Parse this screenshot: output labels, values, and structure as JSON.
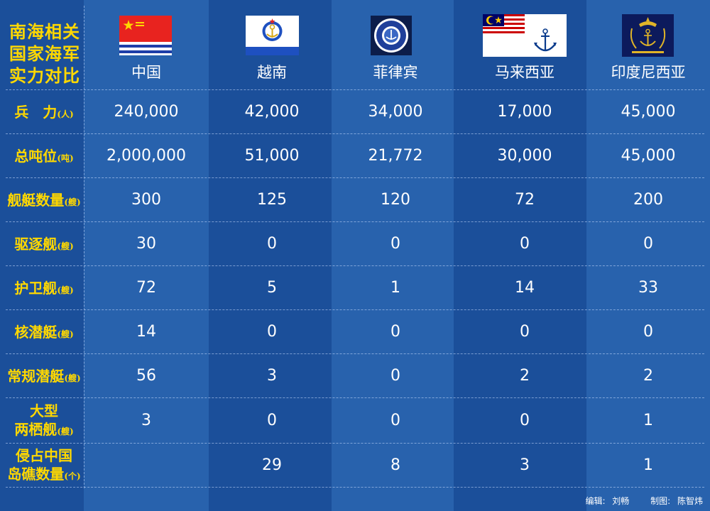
{
  "title_lines": [
    "南海相关",
    "国家海军",
    "实力对比"
  ],
  "countries": [
    {
      "name": "中国",
      "flag": "china-navy-flag-icon"
    },
    {
      "name": "越南",
      "flag": "vietnam-navy-flag-icon"
    },
    {
      "name": "菲律宾",
      "flag": "philippine-navy-seal-icon"
    },
    {
      "name": "马来西亚",
      "flag": "malaysia-navy-flag-icon"
    },
    {
      "name": "印度尼西亚",
      "flag": "indonesia-navy-flag-icon"
    }
  ],
  "chart_data": {
    "type": "table",
    "columns": [
      "中国",
      "越南",
      "菲律宾",
      "马来西亚",
      "印度尼西亚"
    ],
    "rows": [
      {
        "label": "兵　力",
        "unit": "(人)",
        "values": [
          "240,000",
          "42,000",
          "34,000",
          "17,000",
          "45,000"
        ]
      },
      {
        "label": "总吨位",
        "unit": "(吨)",
        "values": [
          "2,000,000",
          "51,000",
          "21,772",
          "30,000",
          "45,000"
        ]
      },
      {
        "label": "舰艇数量",
        "unit": "(艘)",
        "values": [
          "300",
          "125",
          "120",
          "72",
          "200"
        ]
      },
      {
        "label": "驱逐舰",
        "unit": "(艘)",
        "values": [
          "30",
          "0",
          "0",
          "0",
          "0"
        ]
      },
      {
        "label": "护卫舰",
        "unit": "(艘)",
        "values": [
          "72",
          "5",
          "1",
          "14",
          "33"
        ]
      },
      {
        "label": "核潜艇",
        "unit": "(艘)",
        "values": [
          "14",
          "0",
          "0",
          "0",
          "0"
        ]
      },
      {
        "label": "常规潜艇",
        "unit": "(艘)",
        "values": [
          "56",
          "3",
          "0",
          "2",
          "2"
        ]
      },
      {
        "label": "大型两栖舰",
        "label_line1": "大型",
        "label_line2": "两栖舰",
        "unit": "(艘)",
        "values": [
          "3",
          "0",
          "0",
          "0",
          "1"
        ]
      },
      {
        "label": "侵占中国岛礁数量",
        "label_line1": "侵占中国",
        "label_line2": "岛礁数量",
        "unit": "(个)",
        "values": [
          "",
          "29",
          "8",
          "3",
          "1"
        ]
      }
    ]
  },
  "credits": {
    "editor": "编辑: 刘畅",
    "designer": "制图: 陈智炜"
  },
  "colors": {
    "background": "#1b4f9a",
    "stripe": "#2860ab",
    "label": "#ffd800",
    "text": "#ffffff"
  }
}
